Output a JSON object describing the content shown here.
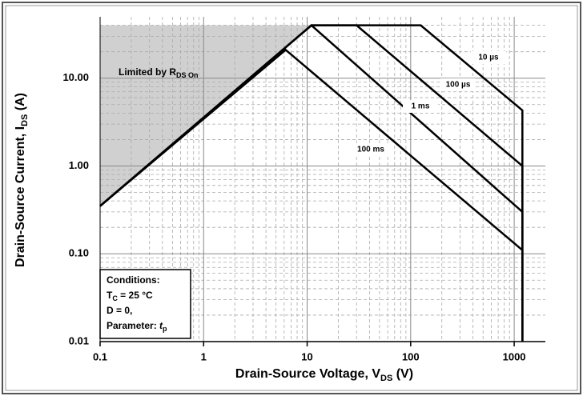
{
  "chart_data": {
    "type": "line",
    "log_x": true,
    "log_y": true,
    "grid": true,
    "minor_grid": true,
    "xlim": [
      0.1,
      2000
    ],
    "ylim": [
      0.01,
      50
    ],
    "xticks": [
      0.1,
      1,
      10,
      100,
      1000
    ],
    "yticks": [
      0.01,
      {
        "value": 0.1,
        "label": "0.10"
      },
      {
        "value": 1,
        "label": "1.00"
      },
      {
        "value": 10,
        "label": "10.00"
      }
    ],
    "xlabel": {
      "text": "Drain-Source Voltage, V",
      "sub": "DS",
      "tail": " (V)"
    },
    "ylabel": {
      "text": "Drain-Source Current, I",
      "sub": "DS",
      "tail": " (A)"
    },
    "shaded_region": {
      "name": {
        "text": "Limited by R",
        "sub": "DS On"
      },
      "color": "#d0d0d0",
      "x": [
        0.1,
        11,
        0.1
      ],
      "y": [
        0.35,
        40,
        40
      ]
    },
    "series": [
      {
        "name": "10 µs",
        "color": "#000000",
        "x": [
          0.1,
          11,
          125,
          1200,
          1200
        ],
        "values": [
          0.35,
          40,
          40,
          4.3,
          0.01
        ]
      },
      {
        "name": "100 µs",
        "color": "#000000",
        "x": [
          0.1,
          11,
          30,
          1200,
          1200
        ],
        "values": [
          0.35,
          40,
          40,
          1.0,
          0.01
        ]
      },
      {
        "name": "1 ms",
        "color": "#000000",
        "x": [
          0.1,
          11,
          1200,
          1200
        ],
        "values": [
          0.35,
          40,
          0.3,
          0.01
        ]
      },
      {
        "name": "100 ms",
        "color": "#000000",
        "x": [
          0.1,
          6.2,
          1200,
          1200
        ],
        "values": [
          0.35,
          21,
          0.11,
          0.01
        ]
      }
    ],
    "conditions": {
      "title": "Conditions:",
      "tc": {
        "text": "T",
        "sub": "C",
        "tail": " = 25 °C"
      },
      "d": "D = 0,",
      "param": {
        "text": "Parameter: ",
        "italic": "t",
        "sub": "p"
      }
    }
  }
}
